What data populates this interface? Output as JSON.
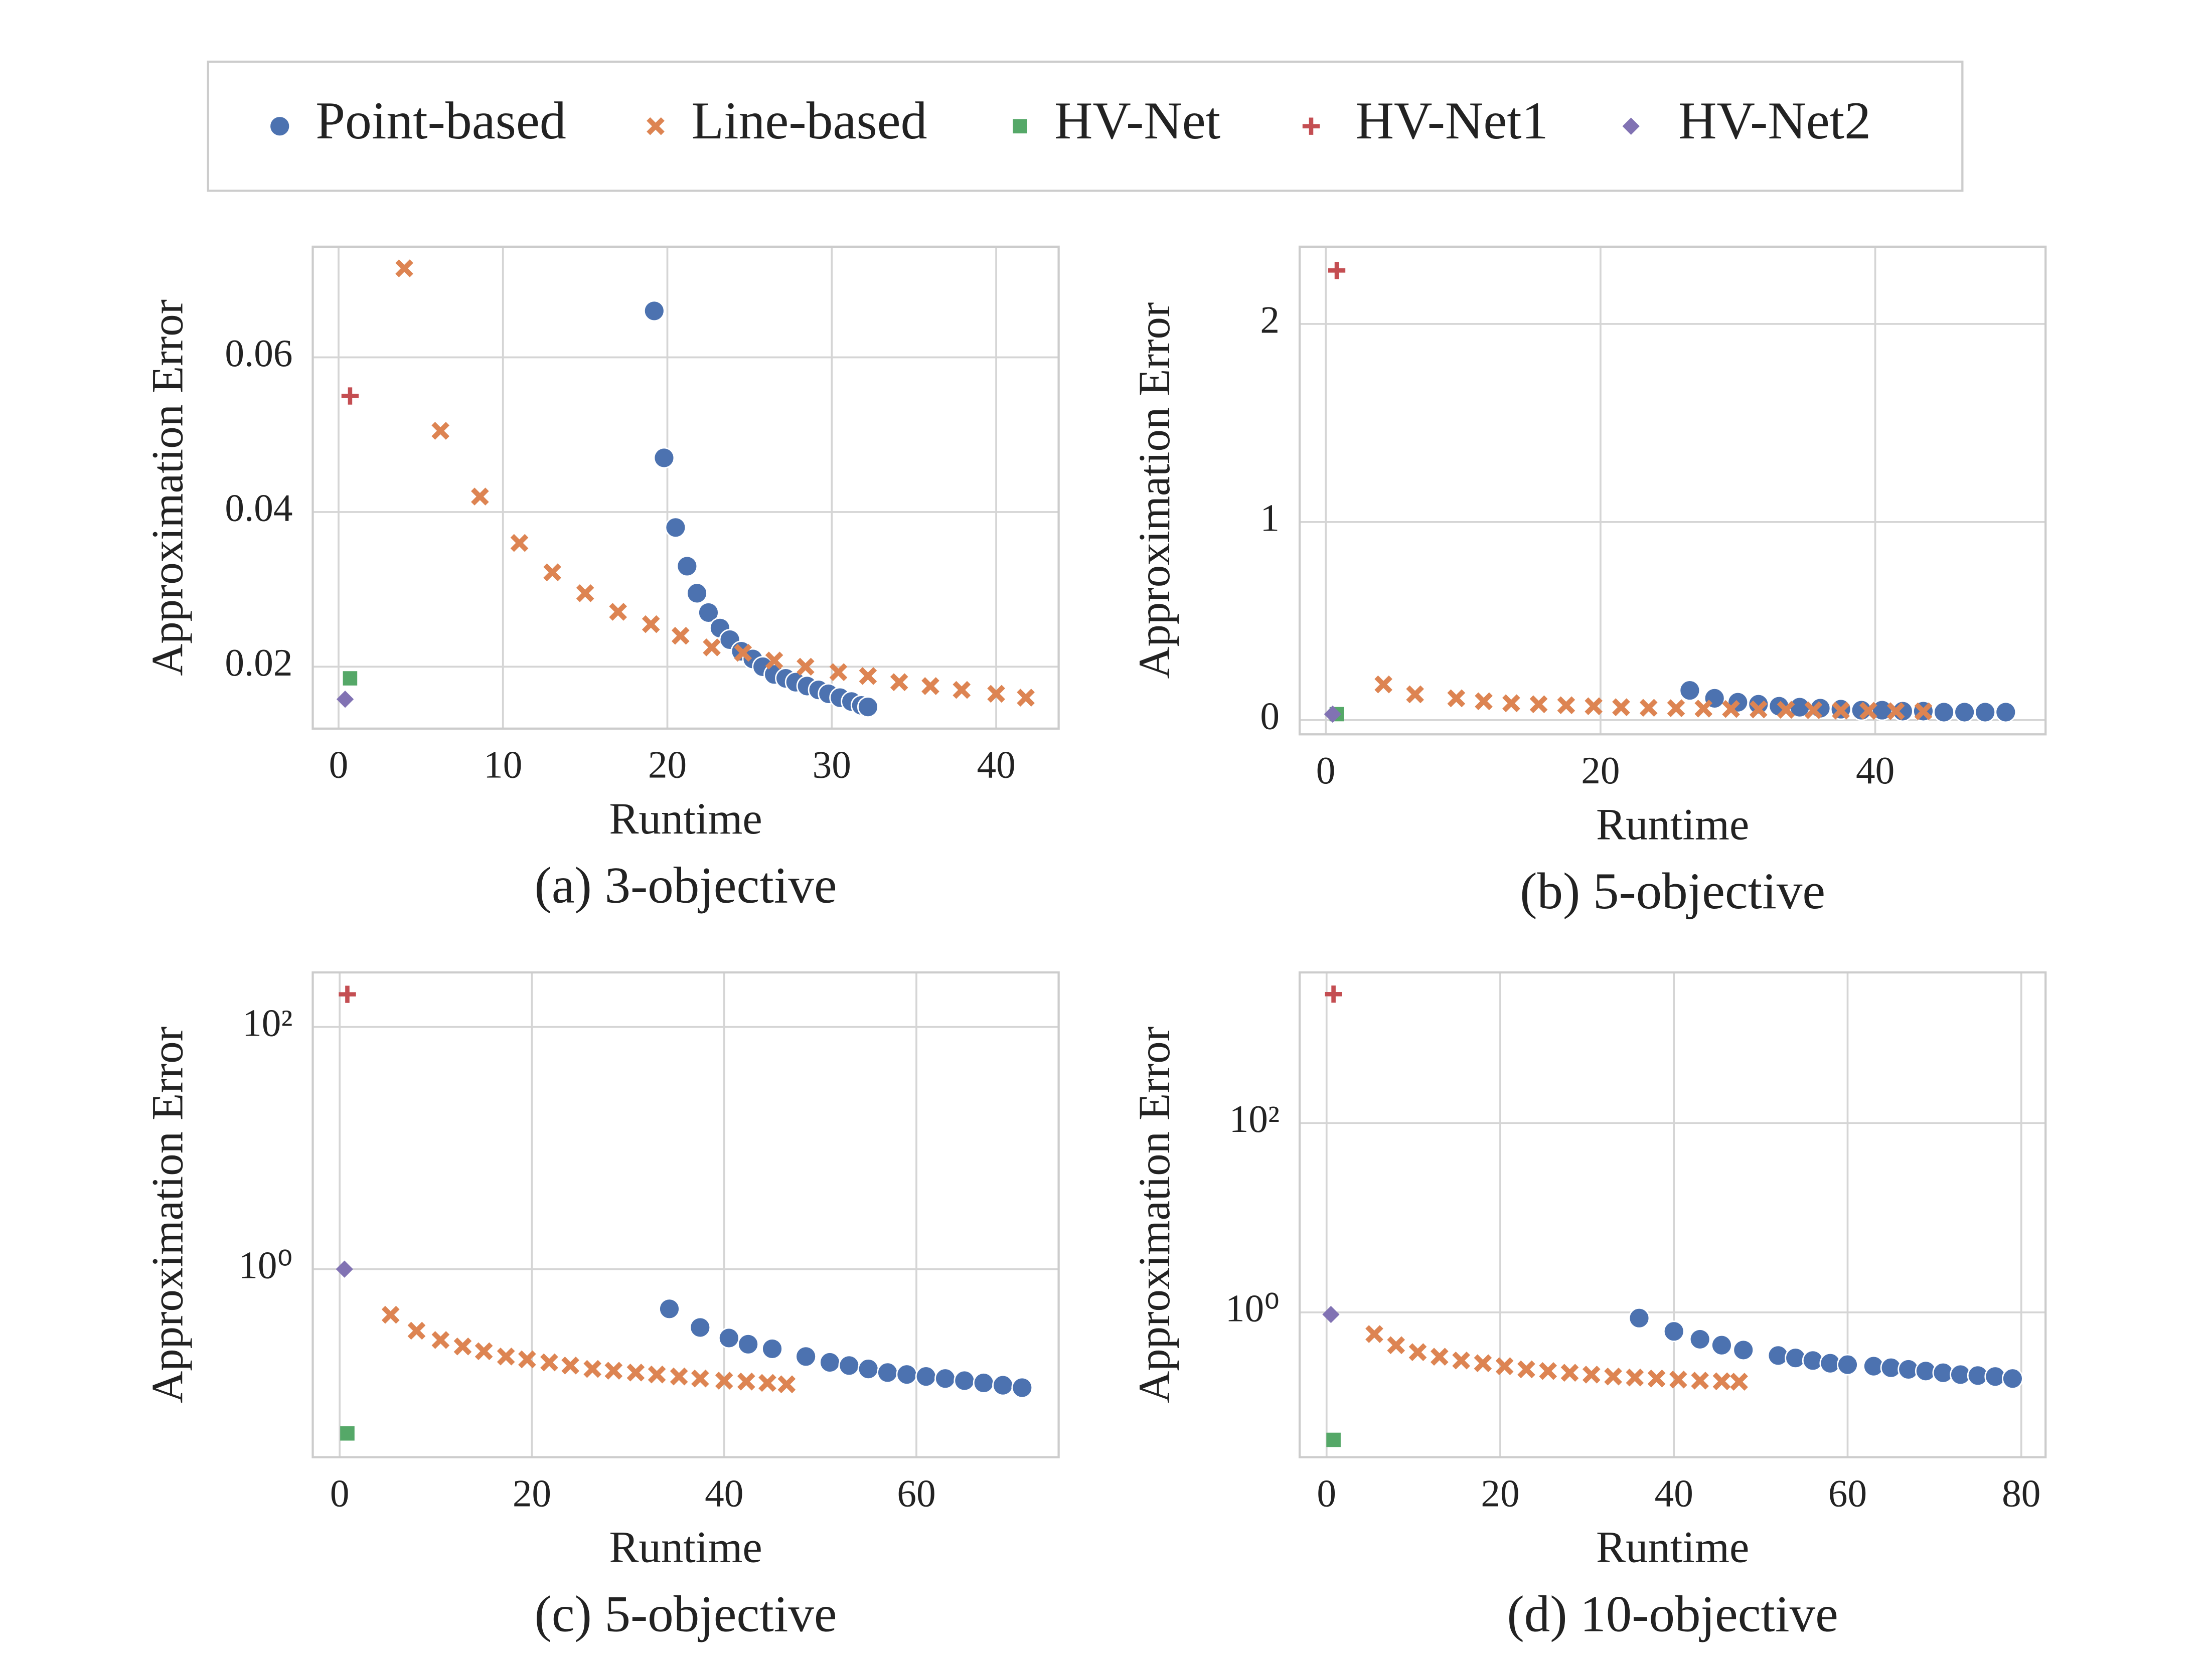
{
  "chart_data": [
    {
      "type": "scatter",
      "caption": "(a) 3-objective",
      "xlabel": "Runtime",
      "ylabel": "Approximation Error",
      "xlim": [
        -1.57,
        43.8
      ],
      "ylim": [
        0.012,
        0.0743
      ],
      "xticks": [
        0,
        10,
        20,
        30,
        40
      ],
      "yticks": [
        0.02,
        0.04,
        0.06
      ],
      "grid": true,
      "legend": "top",
      "series": [
        {
          "name": "Point-based",
          "color": "#4c72b0",
          "marker": "circle",
          "x": [
            19.2,
            19.8,
            20.5,
            21.2,
            21.8,
            22.5,
            23.2,
            23.8,
            24.5,
            25.2,
            25.8,
            26.5,
            27.2,
            27.8,
            28.5,
            29.2,
            29.8,
            30.5,
            31.2,
            31.8,
            32.2
          ],
          "values": [
            0.066,
            0.047,
            0.038,
            0.033,
            0.0295,
            0.027,
            0.025,
            0.0235,
            0.022,
            0.021,
            0.02,
            0.019,
            0.0185,
            0.018,
            0.0175,
            0.017,
            0.0165,
            0.016,
            0.0155,
            0.015,
            0.0148
          ]
        },
        {
          "name": "Line-based",
          "color": "#dd8452",
          "marker": "x",
          "x": [
            4,
            6.2,
            8.6,
            11,
            13,
            15,
            17,
            19,
            20.8,
            22.7,
            24.6,
            26.5,
            28.4,
            30.4,
            32.2,
            34.1,
            36,
            37.9,
            40,
            41.8
          ],
          "values": [
            0.0715,
            0.0505,
            0.042,
            0.036,
            0.0322,
            0.0295,
            0.0271,
            0.0255,
            0.024,
            0.0225,
            0.0218,
            0.0208,
            0.02,
            0.0193,
            0.0188,
            0.018,
            0.0175,
            0.017,
            0.0165,
            0.016
          ]
        },
        {
          "name": "HV-Net",
          "color": "#55a868",
          "marker": "square",
          "x": [
            0.7
          ],
          "values": [
            0.0185
          ]
        },
        {
          "name": "HV-Net1",
          "color": "#c44e52",
          "marker": "plus",
          "x": [
            0.7
          ],
          "values": [
            0.055
          ]
        },
        {
          "name": "HV-Net2",
          "color": "#8172b3",
          "marker": "diamond",
          "x": [
            0.4
          ],
          "values": [
            0.0158
          ]
        }
      ]
    },
    {
      "type": "scatter",
      "caption": "(b) 5-objective",
      "xlabel": "Runtime",
      "ylabel": "Approximation Error",
      "xlim": [
        -1.9,
        52.4
      ],
      "ylim": [
        -0.072,
        2.39
      ],
      "xticks": [
        0,
        20,
        40
      ],
      "yticks": [
        0,
        1,
        2
      ],
      "grid": true,
      "series": [
        {
          "name": "Point-based",
          "color": "#4c72b0",
          "marker": "circle",
          "x": [
            26.5,
            28.3,
            30,
            31.5,
            33,
            34.5,
            36,
            37.5,
            39,
            40.5,
            42,
            43.5,
            45,
            46.5,
            48,
            49.5
          ],
          "values": [
            0.15,
            0.11,
            0.09,
            0.08,
            0.07,
            0.065,
            0.06,
            0.055,
            0.05,
            0.05,
            0.045,
            0.045,
            0.04,
            0.04,
            0.04,
            0.04
          ]
        },
        {
          "name": "Line-based",
          "color": "#dd8452",
          "marker": "x",
          "x": [
            4.2,
            6.5,
            9.5,
            11.5,
            13.5,
            15.5,
            17.5,
            19.5,
            21.5,
            23.5,
            25.5,
            27.5,
            29.5,
            31.5,
            33.5,
            35.5,
            37.5,
            39.5,
            41.5,
            43.5
          ],
          "values": [
            0.18,
            0.13,
            0.11,
            0.095,
            0.085,
            0.08,
            0.075,
            0.07,
            0.065,
            0.062,
            0.06,
            0.058,
            0.056,
            0.054,
            0.052,
            0.05,
            0.048,
            0.047,
            0.045,
            0.044
          ]
        },
        {
          "name": "HV-Net",
          "color": "#55a868",
          "marker": "square",
          "x": [
            0.8
          ],
          "values": [
            0.03
          ]
        },
        {
          "name": "HV-Net1",
          "color": "#c44e52",
          "marker": "plus",
          "x": [
            0.8
          ],
          "values": [
            2.27
          ]
        },
        {
          "name": "HV-Net2",
          "color": "#8172b3",
          "marker": "diamond",
          "x": [
            0.5
          ],
          "values": [
            0.03
          ]
        }
      ]
    },
    {
      "type": "scatter",
      "caption": "(c) 5-objective",
      "xlabel": "Runtime",
      "ylabel": "Approximation Error",
      "yscale": "log",
      "xlim": [
        -2.8,
        74.8
      ],
      "ylim": [
        0.028,
        282
      ],
      "xticks": [
        0,
        20,
        40,
        60
      ],
      "yticks": [
        {
          "value": 1,
          "label": "10⁰"
        },
        {
          "value": 100,
          "label": "10²"
        }
      ],
      "grid": true,
      "series": [
        {
          "name": "Point-based",
          "color": "#4c72b0",
          "marker": "circle",
          "x": [
            34.3,
            37.5,
            40.5,
            42.5,
            45,
            48.5,
            51,
            53,
            55,
            57,
            59,
            61,
            63,
            65,
            67,
            69,
            71
          ],
          "values": [
            0.47,
            0.33,
            0.27,
            0.24,
            0.22,
            0.19,
            0.17,
            0.16,
            0.15,
            0.14,
            0.135,
            0.13,
            0.125,
            0.12,
            0.115,
            0.11,
            0.105
          ]
        },
        {
          "name": "Line-based",
          "color": "#dd8452",
          "marker": "x",
          "x": [
            5.3,
            8,
            10.5,
            12.8,
            15,
            17.3,
            19.5,
            21.8,
            24,
            26.3,
            28.5,
            30.8,
            33,
            35.3,
            37.5,
            40,
            42.3,
            44.5,
            46.5
          ],
          "values": [
            0.42,
            0.31,
            0.26,
            0.23,
            0.21,
            0.19,
            0.18,
            0.17,
            0.16,
            0.15,
            0.145,
            0.14,
            0.135,
            0.13,
            0.125,
            0.12,
            0.118,
            0.115,
            0.112
          ]
        },
        {
          "name": "HV-Net",
          "color": "#55a868",
          "marker": "square",
          "x": [
            0.8
          ],
          "values": [
            0.044
          ]
        },
        {
          "name": "HV-Net1",
          "color": "#c44e52",
          "marker": "plus",
          "x": [
            0.8
          ],
          "values": [
            186
          ]
        },
        {
          "name": "HV-Net2",
          "color": "#8172b3",
          "marker": "diamond",
          "x": [
            0.5
          ],
          "values": [
            1.0
          ]
        }
      ]
    },
    {
      "type": "scatter",
      "caption": "(d) 10-objective",
      "xlabel": "Runtime",
      "ylabel": "Approximation Error",
      "yscale": "log",
      "xlim": [
        -3.1,
        82.8
      ],
      "ylim": [
        0.0295,
        3900
      ],
      "xticks": [
        0,
        20,
        40,
        60,
        80
      ],
      "yticks": [
        {
          "value": 1,
          "label": "10⁰"
        },
        {
          "value": 100,
          "label": "10²"
        }
      ],
      "grid": true,
      "series": [
        {
          "name": "Point-based",
          "color": "#4c72b0",
          "marker": "circle",
          "x": [
            36,
            40,
            43,
            45.5,
            48,
            52,
            54,
            56,
            58,
            60,
            63,
            65,
            67,
            69,
            71,
            73,
            75,
            77,
            79
          ],
          "values": [
            0.87,
            0.63,
            0.52,
            0.45,
            0.4,
            0.35,
            0.33,
            0.31,
            0.29,
            0.28,
            0.27,
            0.26,
            0.25,
            0.24,
            0.23,
            0.22,
            0.215,
            0.21,
            0.2
          ]
        },
        {
          "name": "Line-based",
          "color": "#dd8452",
          "marker": "x",
          "x": [
            5.5,
            8,
            10.5,
            13,
            15.5,
            18,
            20.5,
            23,
            25.5,
            28,
            30.5,
            33,
            35.5,
            38,
            40.5,
            43,
            45.5,
            47.5
          ],
          "values": [
            0.59,
            0.45,
            0.38,
            0.34,
            0.31,
            0.29,
            0.27,
            0.25,
            0.24,
            0.23,
            0.22,
            0.21,
            0.205,
            0.2,
            0.195,
            0.19,
            0.187,
            0.185
          ]
        },
        {
          "name": "HV-Net",
          "color": "#55a868",
          "marker": "square",
          "x": [
            0.8
          ],
          "values": [
            0.045
          ]
        },
        {
          "name": "HV-Net1",
          "color": "#c44e52",
          "marker": "plus",
          "x": [
            0.8
          ],
          "values": [
            2300
          ]
        },
        {
          "name": "HV-Net2",
          "color": "#8172b3",
          "marker": "diamond",
          "x": [
            0.5
          ],
          "values": [
            0.95
          ]
        }
      ]
    }
  ]
}
